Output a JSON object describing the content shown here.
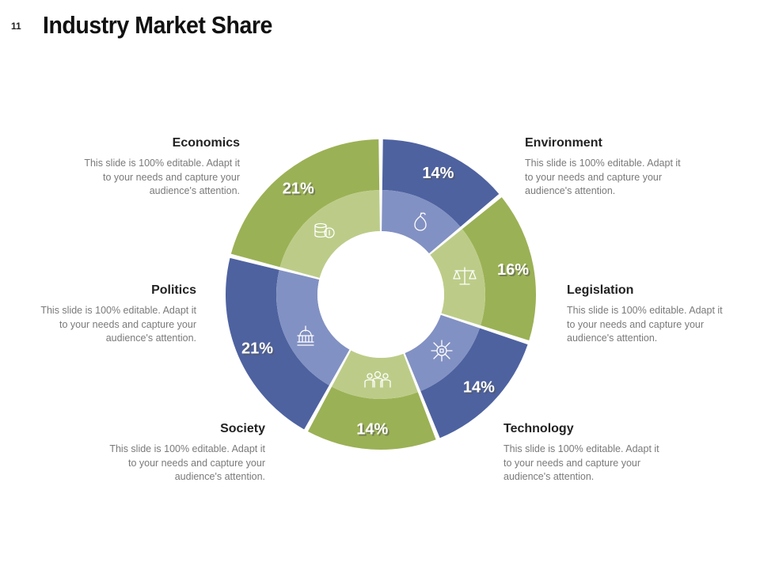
{
  "slide": {
    "number": "11",
    "title": "Industry Market Share"
  },
  "colors": {
    "blue": "#4e62a0",
    "green": "#9bb155",
    "blue_inner": "#8291c3",
    "green_inner": "#bccc88",
    "gap_shadow": "#c8c8c8"
  },
  "chart_data": {
    "type": "pie",
    "style": "donut",
    "title": "Industry Market Share",
    "categories": [
      "Environment",
      "Legislation",
      "Technology",
      "Society",
      "Politics",
      "Economics"
    ],
    "values": [
      14,
      16,
      14,
      14,
      21,
      21
    ],
    "labels": [
      "14%",
      "16%",
      "14%",
      "14%",
      "21%",
      "21%"
    ],
    "series_colors": [
      "blue",
      "green",
      "blue",
      "green",
      "blue",
      "green"
    ],
    "icons": [
      "pear-icon",
      "scales-icon",
      "circuit-icon",
      "people-icon",
      "capitol-icon",
      "coins-icon"
    ]
  },
  "labels": {
    "environment": {
      "title": "Environment",
      "lines": [
        "This slide is 100% editable. Adapt it",
        "to your needs and capture your",
        "audience's attention."
      ]
    },
    "legislation": {
      "title": "Legislation",
      "lines": [
        "This slide is 100% editable. Adapt it",
        "to your needs and capture your",
        "audience's attention."
      ]
    },
    "technology": {
      "title": "Technology",
      "lines": [
        "This slide is 100% editable. Adapt it",
        "to your needs and capture your",
        "audience's attention."
      ]
    },
    "society": {
      "title": "Society",
      "lines": [
        "This slide is 100% editable. Adapt it",
        "to your needs and capture your",
        "audience's attention."
      ]
    },
    "politics": {
      "title": "Politics",
      "lines": [
        "This slide is 100% editable. Adapt it",
        "to your needs and capture your",
        "audience's attention."
      ]
    },
    "economics": {
      "title": "Economics",
      "lines": [
        "This slide is 100% editable. Adapt it",
        "to your needs and capture your",
        "audience's attention."
      ]
    }
  }
}
